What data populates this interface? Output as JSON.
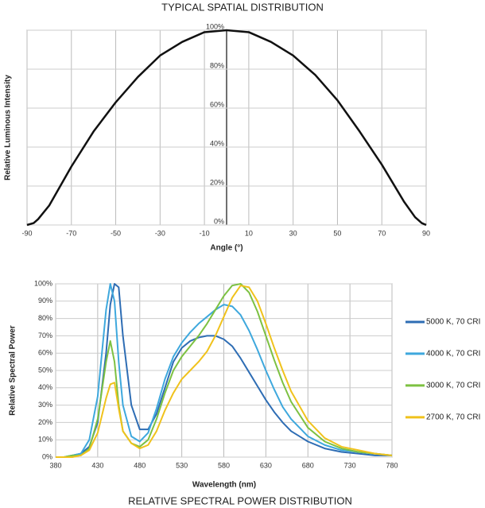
{
  "chart_data": [
    {
      "type": "line",
      "title": "TYPICAL SPATIAL DISTRIBUTION",
      "x_label": "Angle (°)",
      "y_label": "Relative Luminous Intensity",
      "x": [
        -90,
        -87,
        -85,
        -80,
        -70,
        -60,
        -50,
        -40,
        -30,
        -20,
        -10,
        0,
        10,
        20,
        30,
        40,
        50,
        60,
        70,
        80,
        85,
        88,
        90
      ],
      "values": [
        0,
        1,
        3,
        10,
        30,
        48,
        63,
        76,
        87,
        94,
        99,
        100,
        99,
        94,
        87,
        77,
        64,
        48,
        31,
        12,
        4,
        1,
        0
      ],
      "color": "#111111",
      "xlim": [
        -90,
        90
      ],
      "ylim": [
        0,
        100
      ],
      "xticks": [
        -90,
        -70,
        -50,
        -30,
        -10,
        10,
        30,
        50,
        70,
        90
      ],
      "yticks": [
        {
          "value": 0,
          "label": "0%"
        },
        {
          "value": 20,
          "label": "20%"
        },
        {
          "value": 40,
          "label": "40%"
        },
        {
          "value": 60,
          "label": "60%"
        },
        {
          "value": 80,
          "label": "80%"
        },
        {
          "value": 100,
          "label": "100%"
        }
      ],
      "grid": true
    },
    {
      "type": "line",
      "title": "RELATIVE SPECTRAL POWER DISTRIBUTION",
      "x_label": "Wavelength (nm)",
      "y_label": "Relative Spectral Power",
      "x": [
        380,
        390,
        400,
        410,
        420,
        430,
        440,
        445,
        450,
        455,
        460,
        470,
        480,
        490,
        500,
        510,
        520,
        530,
        540,
        550,
        560,
        570,
        580,
        590,
        600,
        610,
        620,
        630,
        640,
        650,
        660,
        680,
        700,
        720,
        740,
        760,
        780
      ],
      "series": [
        {
          "name": "5000 K, 70 CRI",
          "color": "#2e6db4",
          "values": [
            0,
            0,
            1,
            2,
            6,
            20,
            60,
            88,
            100,
            98,
            70,
            30,
            16,
            16,
            25,
            40,
            55,
            63,
            67,
            69,
            70,
            70,
            68,
            64,
            57,
            49,
            41,
            33,
            26,
            20,
            15,
            9,
            5,
            3,
            2,
            1,
            1
          ]
        },
        {
          "name": "4000 K, 70 CRI",
          "color": "#3ea8dd",
          "values": [
            0,
            0,
            1,
            2,
            10,
            35,
            85,
            100,
            90,
            55,
            30,
            12,
            9,
            14,
            28,
            45,
            58,
            66,
            72,
            77,
            81,
            85,
            88,
            87,
            82,
            73,
            62,
            50,
            39,
            29,
            22,
            12,
            7,
            4,
            3,
            2,
            1
          ]
        },
        {
          "name": "3000 K, 70 CRI",
          "color": "#7dc142",
          "values": [
            0,
            0,
            1,
            1,
            5,
            22,
            55,
            67,
            55,
            30,
            15,
            8,
            6,
            10,
            22,
            37,
            50,
            58,
            64,
            70,
            77,
            85,
            93,
            99,
            100,
            95,
            84,
            70,
            56,
            43,
            32,
            17,
            9,
            5,
            3,
            2,
            1
          ]
        },
        {
          "name": "2700 K, 70 CRI",
          "color": "#f0c21c",
          "values": [
            0,
            0,
            0,
            1,
            4,
            14,
            34,
            42,
            43,
            28,
            15,
            8,
            5,
            7,
            15,
            27,
            37,
            45,
            50,
            55,
            61,
            70,
            81,
            92,
            99,
            98,
            90,
            77,
            63,
            50,
            38,
            21,
            11,
            6,
            4,
            2,
            1
          ]
        }
      ],
      "xlim": [
        380,
        780
      ],
      "ylim": [
        0,
        100
      ],
      "xticks": [
        380,
        430,
        480,
        530,
        580,
        630,
        680,
        730,
        780
      ],
      "yticks": [
        {
          "value": 0,
          "label": "0%"
        },
        {
          "value": 10,
          "label": "10%"
        },
        {
          "value": 20,
          "label": "20%"
        },
        {
          "value": 30,
          "label": "30%"
        },
        {
          "value": 40,
          "label": "40%"
        },
        {
          "value": 50,
          "label": "50%"
        },
        {
          "value": 60,
          "label": "60%"
        },
        {
          "value": 70,
          "label": "70%"
        },
        {
          "value": 80,
          "label": "80%"
        },
        {
          "value": 90,
          "label": "90%"
        },
        {
          "value": 100,
          "label": "100%"
        }
      ],
      "grid": true,
      "legend": "right"
    }
  ]
}
